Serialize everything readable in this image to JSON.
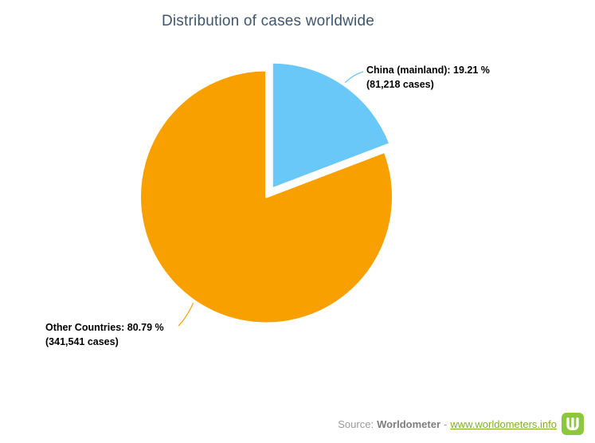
{
  "title": "Distribution of cases worldwide",
  "chart_data": {
    "type": "pie",
    "title": "Distribution of cases worldwide",
    "legend": "off",
    "units": "cases",
    "slices": [
      {
        "label": "China (mainland)",
        "percent": 19.21,
        "cases": 81218,
        "color": "#69c8f7",
        "sliced": true,
        "data_label": {
          "line1": "China (mainland): 19.21 %",
          "line2": "(81,218 cases)"
        }
      },
      {
        "label": "Other Countries",
        "percent": 80.79,
        "cases": 341541,
        "color": "#f8a000",
        "sliced": false,
        "data_label": {
          "line1": "Other Countries: 80.79 %",
          "line2": "(341,541 cases)"
        }
      }
    ]
  },
  "footer": {
    "source_prefix": "Source:",
    "source_name": "Worldometer",
    "separator": "-",
    "link_text": "www.worldometers.info"
  },
  "colors": {
    "title": "#3e576f",
    "data_label": "#000000",
    "slice_border": "#ffffff",
    "footer_text": "#9a9a9a",
    "footer_name": "#7d7d7d",
    "link_green": "#7db223",
    "logo_green": "#8dc63f"
  }
}
